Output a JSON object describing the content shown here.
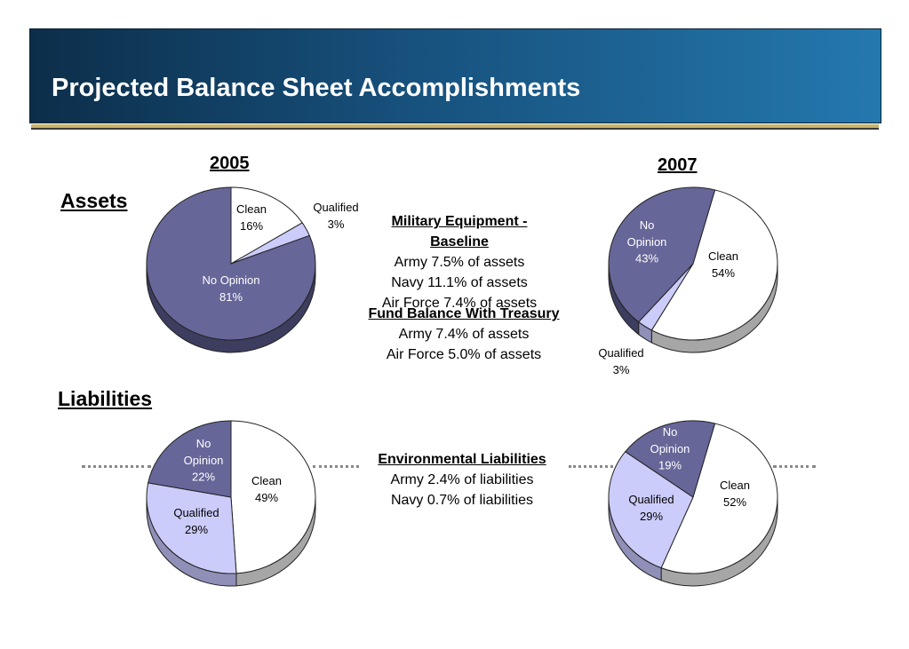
{
  "title": "Projected Balance Sheet Accomplishments",
  "years": [
    "2005",
    "2007"
  ],
  "sections": {
    "assets": "Assets",
    "liabilities": "Liabilities"
  },
  "text_blocks": {
    "military_equipment": {
      "heading": "Military Equipment - Baseline",
      "lines": [
        "Army 7.5% of assets",
        "Navy 11.1% of assets",
        "Air Force 7.4% of assets"
      ]
    },
    "fund_balance": {
      "heading": "Fund Balance With Treasury",
      "lines": [
        "Army 7.4% of assets",
        "Air Force 5.0% of assets"
      ]
    },
    "environmental": {
      "heading": "Environmental Liabilities",
      "lines": [
        "Army 2.4% of liabilities",
        "Navy 0.7% of liabilities"
      ]
    }
  },
  "colors": {
    "clean": "#ffffff",
    "qualified": "#ccccfb",
    "no_opinion": "#666699",
    "banner": "#17517d",
    "accent": "#c9b46a"
  },
  "chart_data": [
    {
      "type": "pie",
      "title": "2005",
      "section": "Assets",
      "slices": [
        {
          "key": "clean",
          "label": [
            "Clean",
            "16%"
          ],
          "value": 16
        },
        {
          "key": "qualified",
          "label": [
            "Qualified",
            "3%"
          ],
          "value": 3
        },
        {
          "key": "no_opinion",
          "label": [
            "No Opinion",
            "81%"
          ],
          "value": 81
        }
      ]
    },
    {
      "type": "pie",
      "title": "2007",
      "section": "Assets",
      "slices": [
        {
          "key": "clean",
          "label": [
            "Clean",
            "54%"
          ],
          "value": 54
        },
        {
          "key": "qualified",
          "label": [
            "Qualified",
            "3%"
          ],
          "value": 3
        },
        {
          "key": "no_opinion",
          "label": [
            "No",
            "Opinion",
            "43%"
          ],
          "value": 43
        }
      ]
    },
    {
      "type": "pie",
      "title": "2005",
      "section": "Liabilities",
      "slices": [
        {
          "key": "clean",
          "label": [
            "Clean",
            "49%"
          ],
          "value": 49
        },
        {
          "key": "qualified",
          "label": [
            "Qualified",
            "29%"
          ],
          "value": 29
        },
        {
          "key": "no_opinion",
          "label": [
            "No",
            "Opinion",
            "22%"
          ],
          "value": 22
        }
      ]
    },
    {
      "type": "pie",
      "title": "2007",
      "section": "Liabilities",
      "slices": [
        {
          "key": "clean",
          "label": [
            "Clean",
            "52%"
          ],
          "value": 52
        },
        {
          "key": "qualified",
          "label": [
            "Qualified",
            "29%"
          ],
          "value": 29
        },
        {
          "key": "no_opinion",
          "label": [
            "No",
            "Opinion",
            "19%"
          ],
          "value": 19
        }
      ]
    }
  ]
}
